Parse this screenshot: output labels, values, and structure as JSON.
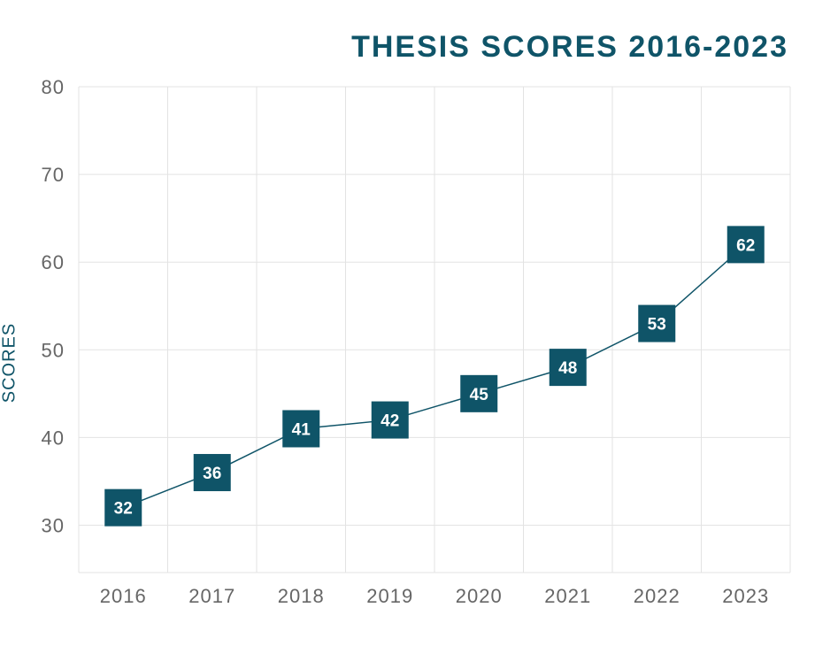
{
  "chart_data": {
    "type": "line",
    "title": "THESIS SCORES 2016-2023",
    "xlabel": "",
    "ylabel": "SCORES",
    "categories": [
      "2016",
      "2017",
      "2018",
      "2019",
      "2020",
      "2021",
      "2022",
      "2023"
    ],
    "values": [
      32,
      36,
      41,
      42,
      45,
      48,
      53,
      62
    ],
    "y_ticks": [
      "30",
      "40",
      "50",
      "60",
      "70",
      "80"
    ],
    "ylim": [
      24.6,
      80
    ],
    "grid": true,
    "legend": "none",
    "colors": {
      "line": "#0f5468",
      "marker": "#0f5468",
      "grid": "#e3e3e3",
      "tick_text": "#666666"
    }
  }
}
